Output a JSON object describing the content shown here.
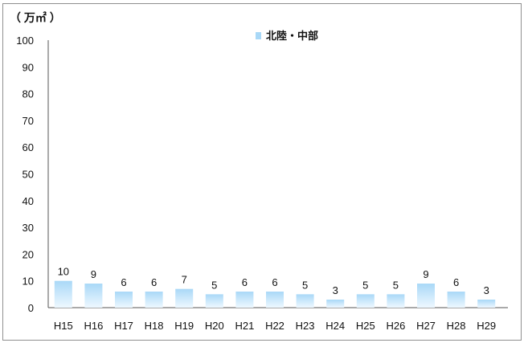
{
  "chart_data": {
    "type": "bar",
    "unit_label": "（ 万㎡ ）",
    "categories": [
      "H15",
      "H16",
      "H17",
      "H18",
      "H19",
      "H20",
      "H21",
      "H22",
      "H23",
      "H24",
      "H25",
      "H26",
      "H27",
      "H28",
      "H29"
    ],
    "series": [
      {
        "name": "北陸・中部",
        "values": [
          10,
          9,
          6,
          6,
          7,
          5,
          6,
          6,
          5,
          3,
          5,
          5,
          9,
          6,
          3
        ]
      }
    ],
    "yticks": [
      0,
      10,
      20,
      30,
      40,
      50,
      60,
      70,
      80,
      90,
      100
    ],
    "ylim": [
      0,
      100
    ],
    "legend_position": "top-center",
    "grid": false,
    "bar_color_top": "#a9d8f7",
    "bar_color_bottom": "#eef8ff"
  }
}
